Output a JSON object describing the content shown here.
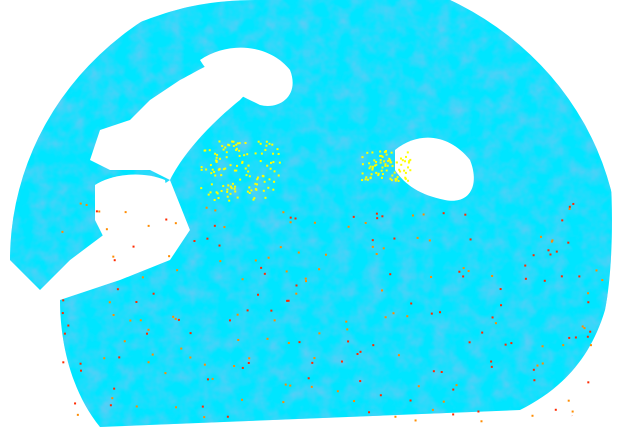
{
  "radar": {
    "colors": {
      "background": "#ffffff",
      "weak_echo": "#1e9be8",
      "moderate_echo": "#00e5ff",
      "strong_echo": "#ff8c00",
      "very_strong_echo": "#ff2a00",
      "light_echo": "#ffff00"
    }
  }
}
